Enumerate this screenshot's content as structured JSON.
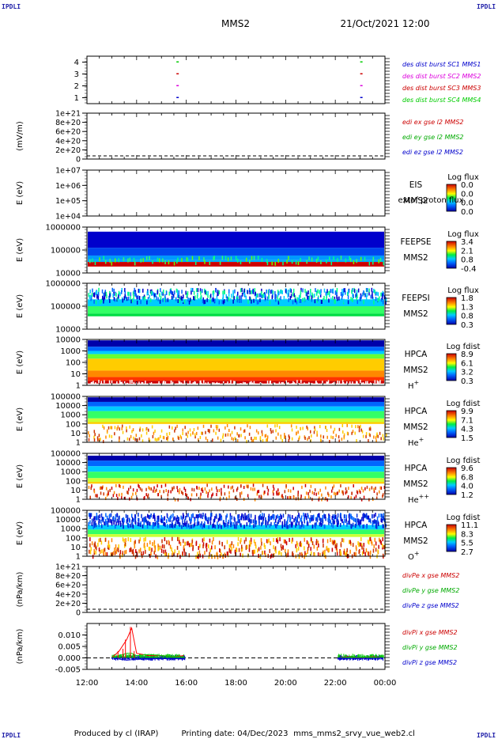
{
  "corners": {
    "tl": "IPDLI",
    "tr": "IPDLI",
    "bl": "IPDLI",
    "br": "IPDLI"
  },
  "header": {
    "spacecraft": "MMS2",
    "datetime": "21/Oct/2021 12:00"
  },
  "footer": {
    "produced_by": "Produced by cl (IRAP)",
    "printing_date": "Printing date: 04/Dec/2023",
    "filename": "mms_mms2_srvy_vue_web2.cl"
  },
  "colors": {
    "red": "#ff0000",
    "green": "#00cc00",
    "blue": "#0000cc",
    "magenta": "#dd00dd",
    "navy": "#000080"
  },
  "chart_data": {
    "type": "multi-panel",
    "time_axis": {
      "ticks": [
        "12:00",
        "14:00",
        "16:00",
        "18:00",
        "20:00",
        "22:00",
        "00:00"
      ],
      "range_hours": [
        12,
        24
      ]
    },
    "panels": [
      {
        "id": "burst",
        "type": "scatter",
        "ylabel": "",
        "ylim": [
          0.5,
          4.5
        ],
        "yticks": [
          "1",
          "2",
          "3",
          "4"
        ],
        "legend": [
          "des dist burst SC1 MMS1",
          "des dist burst SC2 MMS2",
          "des dist burst SC3 MMS3",
          "des dist burst SC4 MMS4"
        ],
        "series": [
          {
            "name": "des dist burst SC4 MMS4",
            "y": 4,
            "color": "#00cc00",
            "x": [
              15.65,
              23.05
            ]
          },
          {
            "name": "des dist burst SC3 MMS3",
            "y": 3,
            "color": "#cc0000",
            "x": [
              15.65,
              23.05
            ]
          },
          {
            "name": "des dist burst SC2 MMS2",
            "y": 2,
            "color": "#dd00dd",
            "x": [
              15.65,
              23.05
            ]
          },
          {
            "name": "des dist burst SC1 MMS1",
            "y": 1,
            "color": "#0000cc",
            "x": [
              15.65,
              23.05
            ]
          }
        ]
      },
      {
        "id": "edi",
        "type": "line",
        "ylabel": "(mV/m)",
        "yticks": [
          "0",
          "2e+20",
          "4e+20",
          "6e+20",
          "8e+20",
          "1e+21"
        ],
        "legend": [
          "edi ex gse l2 MMS2",
          "edi ey gse l2 MMS2",
          "edi ez gse l2 MMS2"
        ]
      },
      {
        "id": "eis",
        "type": "heatmap",
        "ylabel": "E (eV)",
        "yticks": [
          "1e+04",
          "1e+05",
          "1e+06",
          "1e+07"
        ],
        "labels": [
          "EIS",
          "MMS2"
        ],
        "overlay": "extof proton flux",
        "colorbar": {
          "title": "Log flux",
          "ticks": [
            "0.0",
            "0.0",
            "0.0",
            "0.0"
          ]
        }
      },
      {
        "id": "feepse",
        "type": "heatmap",
        "ylabel": "E (eV)",
        "yticks": [
          "10000",
          "100000",
          "1000000"
        ],
        "labels": [
          "FEEPSE",
          "MMS2"
        ],
        "colorbar": {
          "title": "Log flux",
          "ticks": [
            "3.4",
            "2.1",
            "0.8",
            "-0.4"
          ]
        }
      },
      {
        "id": "feepsi",
        "type": "heatmap",
        "ylabel": "E (eV)",
        "yticks": [
          "10000",
          "100000",
          "1000000"
        ],
        "labels": [
          "FEEPSI",
          "MMS2"
        ],
        "colorbar": {
          "title": "Log flux",
          "ticks": [
            "1.8",
            "1.3",
            "0.8",
            "0.3"
          ]
        }
      },
      {
        "id": "hpca_h",
        "type": "heatmap",
        "ylabel": "E (eV)",
        "yticks": [
          "1",
          "10",
          "100",
          "1000",
          "10000"
        ],
        "labels": [
          "HPCA",
          "MMS2"
        ],
        "species": "H",
        "charge": "+",
        "colorbar": {
          "title": "Log fdist",
          "ticks": [
            "8.9",
            "6.1",
            "3.2",
            "0.3"
          ]
        }
      },
      {
        "id": "hpca_he",
        "type": "heatmap",
        "ylabel": "E (eV)",
        "yticks": [
          "1",
          "10",
          "100",
          "1000",
          "10000",
          "100000"
        ],
        "labels": [
          "HPCA",
          "MMS2"
        ],
        "species": "He",
        "charge": "+",
        "colorbar": {
          "title": "Log fdist",
          "ticks": [
            "9.9",
            "7.1",
            "4.3",
            "1.5"
          ]
        }
      },
      {
        "id": "hpca_he2",
        "type": "heatmap",
        "ylabel": "E (eV)",
        "yticks": [
          "1",
          "10",
          "100",
          "1000",
          "10000",
          "100000"
        ],
        "labels": [
          "HPCA",
          "MMS2"
        ],
        "species": "He",
        "charge": "++",
        "colorbar": {
          "title": "Log fdist",
          "ticks": [
            "9.6",
            "6.8",
            "4.0",
            "1.2"
          ]
        }
      },
      {
        "id": "hpca_o",
        "type": "heatmap",
        "ylabel": "E (eV)",
        "yticks": [
          "1",
          "10",
          "100",
          "1000",
          "10000",
          "100000"
        ],
        "labels": [
          "HPCA",
          "MMS2"
        ],
        "species": "O",
        "charge": "+",
        "colorbar": {
          "title": "Log fdist",
          "ticks": [
            "11.1",
            "8.3",
            "5.5",
            "2.7"
          ]
        }
      },
      {
        "id": "divpe",
        "type": "line",
        "ylabel": "(nPa/km)",
        "yticks": [
          "0",
          "2e+20",
          "4e+20",
          "6e+20",
          "8e+20",
          "1e+21"
        ],
        "legend": [
          "divPe x gse MMS2",
          "divPe y gse MMS2",
          "divPe z gse MMS2"
        ]
      },
      {
        "id": "divpi",
        "type": "line",
        "ylabel": "(nPa/km)",
        "ylim": [
          -0.005,
          0.015
        ],
        "yticks": [
          "-0.005",
          "0.000",
          "0.005",
          "0.010"
        ],
        "legend": [
          "divPi x gse MMS2",
          "divPi y gse MMS2",
          "divPi z gse MMS2"
        ],
        "series": [
          {
            "name": "divPi x gse MMS2",
            "color": "#ff0000",
            "x": [
              13.0,
              13.3,
              13.6,
              13.8,
              14.0,
              14.5,
              15.0,
              15.5,
              15.9,
              22.1,
              22.5,
              23.0,
              23.5,
              23.9
            ],
            "y": [
              0.0,
              0.003,
              0.008,
              0.013,
              0.002,
              0.001,
              0.001,
              0.0005,
              0.001,
              0.0,
              0.0005,
              0.0,
              0.0005,
              0.0
            ]
          },
          {
            "name": "divPi y gse MMS2",
            "color": "#00cc00",
            "x": [
              13.0,
              13.3,
              13.6,
              13.8,
              14.0,
              14.5,
              15.0,
              15.5,
              15.9,
              22.1,
              22.5,
              23.0,
              23.5,
              23.9
            ],
            "y": [
              0.0,
              0.001,
              0.002,
              0.002,
              0.001,
              0.0015,
              0.001,
              0.0005,
              0.0005,
              0.0,
              0.0003,
              0.0002,
              0.0003,
              0.0
            ]
          },
          {
            "name": "divPi z gse MMS2",
            "color": "#0000cc",
            "x": [
              13.0,
              13.3,
              13.6,
              13.8,
              14.0,
              14.5,
              15.0,
              15.5,
              15.9,
              22.1,
              22.5,
              23.0,
              23.5,
              23.9
            ],
            "y": [
              0.0,
              -0.0005,
              -0.001,
              -0.0008,
              -0.0005,
              -0.0005,
              -0.0003,
              -0.0004,
              -0.0003,
              0.0,
              -0.0002,
              -0.0002,
              -0.0002,
              0.0
            ]
          }
        ]
      }
    ]
  }
}
